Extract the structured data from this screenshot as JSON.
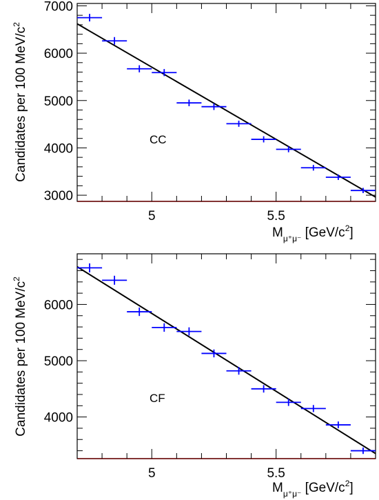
{
  "chart_data": [
    {
      "type": "scatter",
      "panel_label": "CC",
      "xlabel": {
        "main": "M",
        "sub": "μ⁺μ⁻",
        "unit_pre": " [GeV/c",
        "unit_sup": "2",
        "unit_post": "]"
      },
      "ylabel": {
        "main": "Candidates per 100 MeV/c",
        "sup": "2"
      },
      "xlim": [
        4.7,
        5.9
      ],
      "ylim": [
        2870,
        7050
      ],
      "xticks": [
        5,
        5.5
      ],
      "xtick_labels": [
        "5",
        "5.5"
      ],
      "yticks": [
        3000,
        4000,
        5000,
        6000,
        7000
      ],
      "ytick_labels": [
        "3000",
        "4000",
        "5000",
        "6000",
        "7000"
      ],
      "bin_halfwidth": 0.05,
      "series": [
        {
          "type": "errorbar",
          "color": "#0000ff",
          "x": [
            4.75,
            4.85,
            4.95,
            5.05,
            5.15,
            5.25,
            5.35,
            5.45,
            5.55,
            5.65,
            5.75,
            5.85
          ],
          "y": [
            6750,
            6260,
            5670,
            5590,
            4950,
            4870,
            4510,
            4180,
            3970,
            3580,
            3380,
            3100
          ],
          "yerr": [
            80,
            80,
            75,
            75,
            70,
            70,
            65,
            65,
            63,
            60,
            58,
            55
          ]
        },
        {
          "type": "line",
          "color": "#000000",
          "x": [
            4.7,
            5.9
          ],
          "y": [
            6620,
            2960
          ]
        }
      ]
    },
    {
      "type": "scatter",
      "panel_label": "CF",
      "xlabel": {
        "main": "M",
        "sub": "μ⁺μ⁻",
        "unit_pre": " [GeV/c",
        "unit_sup": "2",
        "unit_post": "]"
      },
      "ylabel": {
        "main": "Candidates per 100 MeV/c",
        "sup": "2"
      },
      "xlim": [
        4.7,
        5.9
      ],
      "ylim": [
        3260,
        6900
      ],
      "xticks": [
        5,
        5.5
      ],
      "xtick_labels": [
        "5",
        "5.5"
      ],
      "yticks": [
        4000,
        5000,
        6000
      ],
      "ytick_labels": [
        "4000",
        "5000",
        "6000"
      ],
      "bin_halfwidth": 0.05,
      "series": [
        {
          "type": "errorbar",
          "color": "#0000ff",
          "x": [
            4.75,
            4.85,
            4.95,
            5.05,
            5.15,
            5.25,
            5.35,
            5.45,
            5.55,
            5.65,
            5.75,
            5.85
          ],
          "y": [
            6650,
            6430,
            5870,
            5590,
            5520,
            5130,
            4820,
            4500,
            4260,
            4150,
            3860,
            3400
          ],
          "yerr": [
            80,
            80,
            75,
            75,
            73,
            70,
            68,
            66,
            64,
            63,
            60,
            57
          ]
        },
        {
          "type": "line",
          "color": "#000000",
          "x": [
            4.7,
            5.9
          ],
          "y": [
            6670,
            3350
          ]
        }
      ]
    }
  ]
}
